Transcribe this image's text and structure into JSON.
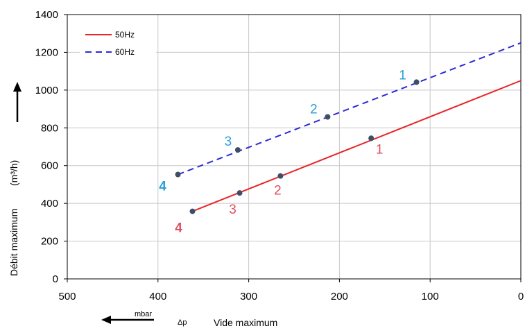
{
  "chart_data": {
    "type": "line",
    "xlim": [
      500,
      0
    ],
    "ylim": [
      0,
      1400
    ],
    "x_ticks": [
      "500",
      "400",
      "300",
      "200",
      "100",
      "0"
    ],
    "y_ticks": [
      "0",
      "200",
      "400",
      "600",
      "800",
      "1000",
      "1200",
      "1400"
    ],
    "ylabel": "Débit maximum",
    "ylabel_unit": "(m³/h)",
    "xlabel": "Vide maximum",
    "xlabel_unit": "mbar",
    "xlabel_symbol": "Δp",
    "grid": true,
    "legend_position": "top-left",
    "colors": {
      "s50": "#e8262b",
      "s60": "#2b2bd6",
      "pt": "#3d4f66",
      "lbl50": "#e05060",
      "lbl60": "#2aa0d8"
    },
    "series": [
      {
        "name": "50Hz",
        "style": "solid",
        "line": [
          [
            362,
            358
          ],
          [
            0,
            1050
          ]
        ],
        "points": [
          {
            "x": 165,
            "y": 745,
            "label": "1"
          },
          {
            "x": 265,
            "y": 545,
            "label": "2"
          },
          {
            "x": 310,
            "y": 455,
            "label": "3"
          },
          {
            "x": 362,
            "y": 358,
            "label": "4"
          }
        ]
      },
      {
        "name": "60Hz",
        "style": "dashed",
        "line": [
          [
            378,
            553
          ],
          [
            0,
            1250
          ]
        ],
        "points": [
          {
            "x": 115,
            "y": 1042,
            "label": "1"
          },
          {
            "x": 213,
            "y": 858,
            "label": "2"
          },
          {
            "x": 312,
            "y": 683,
            "label": "3"
          },
          {
            "x": 378,
            "y": 553,
            "label": "4"
          }
        ]
      }
    ]
  }
}
